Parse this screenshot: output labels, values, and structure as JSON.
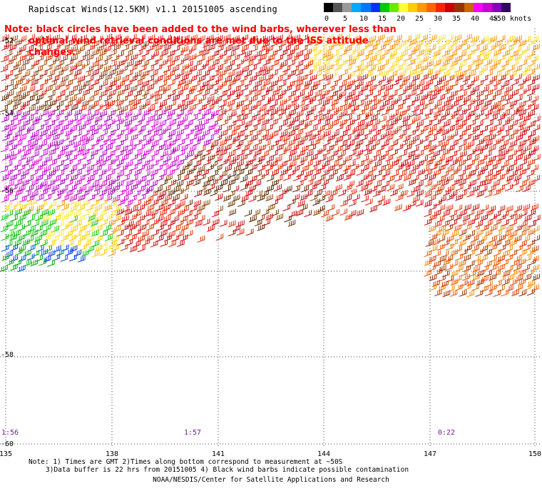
{
  "title": "Rapidscat Winds(12.5KM) v1.1 20151005 ascending",
  "legend": {
    "unit": "knots",
    "labels": [
      "0",
      "5",
      "10",
      "15",
      "20",
      "25",
      "30",
      "35",
      "40",
      "45",
      ">50"
    ],
    "colors": [
      "#000000",
      "#555555",
      "#999999",
      "#00aaff",
      "#0077ff",
      "#0033ff",
      "#00cc00",
      "#66ee00",
      "#ffff33",
      "#ffcc00",
      "#ff9900",
      "#ff6600",
      "#ff2200",
      "#cc0000",
      "#993300",
      "#cc6600",
      "#ff00ff",
      "#cc00cc",
      "#8800bb",
      "#330066"
    ]
  },
  "note": {
    "line1": "Note: black circles have been added to the wind barbs, wherever less than",
    "line2": "optimal wind retrieval conditions are met due to the ISS attitude changes."
  },
  "axes": {
    "latitudes": [
      "-52",
      "-54",
      "-56",
      "-58",
      "-60"
    ],
    "longitudes": [
      "135",
      "138",
      "141",
      "144",
      "147",
      "150"
    ]
  },
  "pass_times": [
    "1:56",
    "1:57",
    "0:22"
  ],
  "footnote": {
    "line1": "Note: 1) Times are GMT 2)Times along bottom correspond to measurement at ~50S",
    "line2": "3)Data buffer is 22 hrs from 20151005 4) Black wind barbs indicate possible contamination"
  },
  "credit": "NOAA/NESDIS/Center for Satellite Applications and Research"
}
